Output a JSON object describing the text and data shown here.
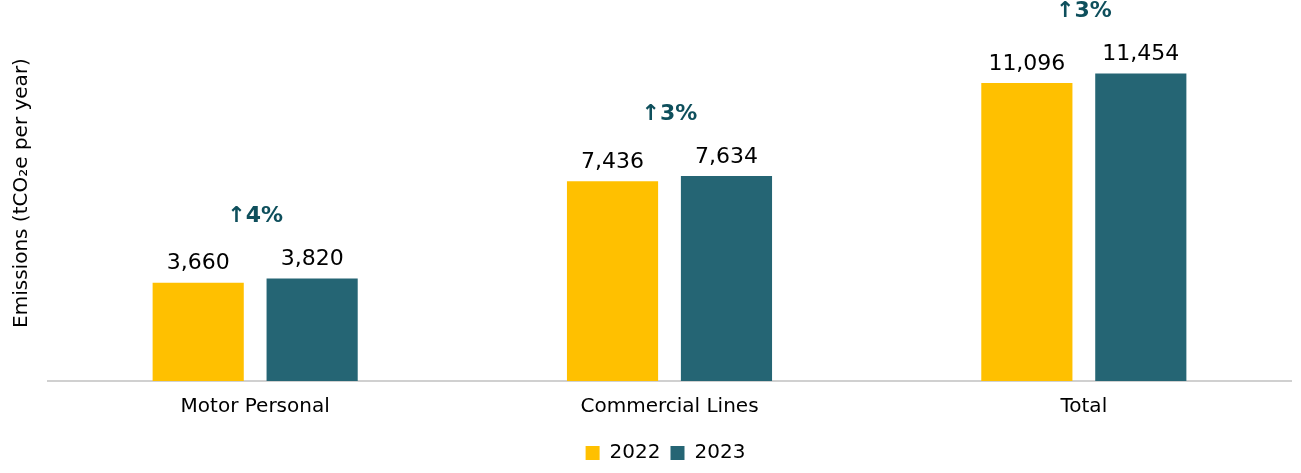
{
  "chart_data": {
    "type": "bar",
    "ylabel": "Emissions (tCO₂e per year)",
    "categories": [
      "Motor Personal",
      "Commercial Lines",
      "Total"
    ],
    "series": [
      {
        "name": "2022",
        "color": "#ffc000",
        "values": [
          3660,
          7436,
          11096
        ],
        "value_labels": [
          "3,660",
          "7,436",
          "11,096"
        ]
      },
      {
        "name": "2023",
        "color": "#256574",
        "values": [
          3820,
          7634,
          11454
        ],
        "value_labels": [
          "3,820",
          "7,634",
          "11,454"
        ]
      }
    ],
    "legend": "bottom",
    "grid": false,
    "tick_labels": "x",
    "annotations": [
      "↑4%",
      "↑3%",
      "↑3%"
    ]
  }
}
